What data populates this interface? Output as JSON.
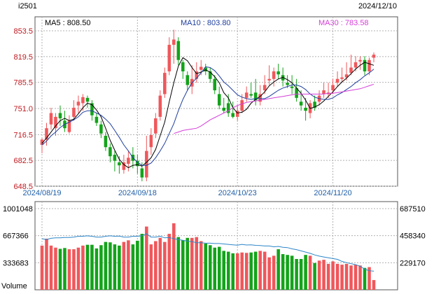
{
  "header": {
    "symbol": "i2501",
    "date": "2024/12/10"
  },
  "legend": [
    {
      "label": "MA5 : 808.50",
      "color": "#000000"
    },
    {
      "label": "MA10 : 803.80",
      "color": "#1f3f9f"
    },
    {
      "label": "MA30 : 783.58",
      "color": "#d43fd8"
    }
  ],
  "colors": {
    "up": "#f0575b",
    "down": "#13a31a",
    "vol_line": "#2c86c8",
    "grid": "#b0b0b0",
    "date_label": "#1f5fa8",
    "price_label": "#c0191f"
  },
  "chart_data": [
    {
      "type": "candlestick",
      "ylim": [
        648.5,
        853.5
      ],
      "y_ticks": [
        "853.5",
        "819.5",
        "785.5",
        "751.0",
        "716.5",
        "682.5",
        "648.5"
      ],
      "x_ticks": [
        "2024/08/19",
        "2024/09/18",
        "2024/10/23",
        "2024/11/20"
      ],
      "x_tick_index": [
        0,
        21,
        43,
        64
      ],
      "legend": [
        "MA5 : 808.50",
        "MA10 : 803.80",
        "MA30 : 783.58"
      ],
      "series": [
        {
          "name": "OHLC",
          "open": [
            703,
            710,
            730,
            725,
            745,
            735,
            720,
            740,
            755,
            758,
            765,
            758,
            740,
            730,
            715,
            700,
            690,
            680,
            670,
            678,
            690,
            682,
            672,
            660,
            700,
            718,
            740,
            770,
            800,
            835,
            840,
            812,
            795,
            780,
            790,
            802,
            805,
            800,
            790,
            770,
            752,
            758,
            745,
            740,
            748,
            765,
            770,
            772,
            760,
            775,
            788,
            790,
            800,
            795,
            785,
            780,
            778,
            760,
            752,
            745,
            760,
            760,
            770,
            770,
            775,
            785,
            790,
            792,
            798,
            805,
            813,
            815,
            800,
            818
          ],
          "high": [
            712,
            732,
            752,
            745,
            755,
            748,
            742,
            762,
            768,
            770,
            768,
            762,
            745,
            735,
            720,
            705,
            695,
            688,
            690,
            695,
            700,
            690,
            680,
            715,
            725,
            745,
            775,
            805,
            845,
            855,
            845,
            815,
            800,
            808,
            812,
            815,
            810,
            805,
            795,
            780,
            765,
            770,
            760,
            755,
            770,
            780,
            785,
            790,
            782,
            795,
            808,
            805,
            810,
            805,
            795,
            795,
            790,
            775,
            765,
            762,
            768,
            775,
            785,
            785,
            790,
            800,
            805,
            812,
            822,
            820,
            820,
            820,
            818,
            825
          ],
          "low": [
            692,
            702,
            723,
            715,
            728,
            720,
            718,
            735,
            745,
            748,
            752,
            735,
            728,
            712,
            695,
            680,
            668,
            665,
            665,
            668,
            672,
            665,
            655,
            655,
            690,
            712,
            735,
            765,
            795,
            810,
            808,
            790,
            775,
            770,
            785,
            795,
            795,
            785,
            770,
            750,
            745,
            740,
            738,
            735,
            745,
            760,
            765,
            755,
            755,
            770,
            782,
            780,
            790,
            780,
            778,
            770,
            760,
            748,
            735,
            738,
            748,
            755,
            765,
            765,
            770,
            780,
            785,
            788,
            795,
            800,
            802,
            795,
            795,
            812
          ],
          "close": [
            710,
            725,
            745,
            740,
            738,
            725,
            735,
            752,
            760,
            766,
            760,
            742,
            732,
            718,
            700,
            688,
            682,
            676,
            680,
            686,
            682,
            675,
            660,
            695,
            716,
            738,
            768,
            798,
            835,
            842,
            815,
            800,
            782,
            790,
            800,
            806,
            800,
            790,
            775,
            755,
            748,
            745,
            740,
            748,
            762,
            772,
            768,
            762,
            770,
            782,
            790,
            800,
            796,
            788,
            782,
            778,
            765,
            755,
            748,
            758,
            752,
            768,
            775,
            772,
            782,
            790,
            792,
            796,
            805,
            812,
            815,
            800,
            815,
            822
          ]
        },
        {
          "name": "MA5",
          "values": [
            705,
            712,
            720,
            728,
            735,
            738,
            735,
            737,
            744,
            752,
            758,
            756,
            749,
            740,
            725,
            709,
            696,
            684,
            677,
            673,
            676,
            677,
            675,
            680,
            686,
            697,
            715,
            733,
            760,
            785,
            807,
            818,
            814,
            805,
            797,
            799,
            802,
            799,
            793,
            785,
            772,
            765,
            752,
            745,
            746,
            750,
            758,
            763,
            767,
            773,
            781,
            786,
            790,
            792,
            789,
            785,
            778,
            771,
            762,
            751,
            753,
            756,
            761,
            767,
            773,
            780,
            786,
            791,
            797,
            803,
            808,
            812,
            810,
            808
          ]
        },
        {
          "name": "MA10",
          "values": [
            703,
            708,
            715,
            720,
            726,
            730,
            733,
            736,
            740,
            746,
            748,
            748,
            745,
            742,
            737,
            731,
            722,
            713,
            703,
            695,
            686,
            680,
            676,
            676,
            679,
            686,
            695,
            705,
            718,
            731,
            748,
            763,
            775,
            785,
            791,
            798,
            806,
            805,
            801,
            794,
            786,
            781,
            775,
            769,
            766,
            764,
            763,
            764,
            764,
            764,
            767,
            771,
            775,
            778,
            780,
            782,
            782,
            780,
            776,
            770,
            766,
            764,
            763,
            763,
            765,
            769,
            772,
            776,
            780,
            785,
            789,
            794,
            798,
            803
          ]
        },
        {
          "name": "MA30",
          "values": [
            null,
            null,
            null,
            null,
            null,
            null,
            null,
            null,
            null,
            null,
            null,
            null,
            null,
            null,
            null,
            null,
            null,
            null,
            null,
            null,
            null,
            null,
            null,
            null,
            null,
            null,
            null,
            null,
            null,
            718,
            720,
            722,
            723,
            724,
            725,
            728,
            732,
            736,
            739,
            742,
            745,
            748,
            752,
            755,
            757,
            759,
            760,
            761,
            762,
            763,
            764,
            765,
            766,
            767,
            768,
            769,
            770,
            770,
            770,
            770,
            770,
            770,
            770,
            771,
            771,
            772,
            773,
            774,
            775,
            776,
            777,
            779,
            781,
            783
          ]
        }
      ]
    },
    {
      "type": "bar",
      "ylim": [
        0,
        1001048
      ],
      "y_ticks_left": [
        "1001048",
        "667366",
        "333683"
      ],
      "y_ticks_right": [
        "687510",
        "458340",
        "229170"
      ],
      "ylabel": "Volume",
      "series": [
        {
          "name": "Volume",
          "values": [
            545000,
            630000,
            545000,
            520000,
            505000,
            515000,
            500000,
            500000,
            520000,
            545000,
            555000,
            555000,
            510000,
            550000,
            590000,
            585000,
            560000,
            545000,
            590000,
            610000,
            560000,
            605000,
            690000,
            780000,
            560000,
            600000,
            640000,
            590000,
            690000,
            820000,
            650000,
            610000,
            640000,
            640000,
            650000,
            600000,
            570000,
            550000,
            520000,
            530000,
            480000,
            470000,
            450000,
            450000,
            460000,
            455000,
            460000,
            470000,
            480000,
            470000,
            400000,
            420000,
            500000,
            440000,
            430000,
            420000,
            380000,
            380000,
            430000,
            420000,
            330000,
            360000,
            370000,
            320000,
            350000,
            320000,
            310000,
            320000,
            300000,
            310000,
            300000,
            270000,
            280000,
            120000
          ]
        },
        {
          "name": "Open Interest",
          "values": [
            630000,
            620000,
            635000,
            640000,
            640000,
            645000,
            645000,
            650000,
            660000,
            660000,
            665000,
            660000,
            650000,
            650000,
            660000,
            665000,
            660000,
            662000,
            650000,
            650000,
            660000,
            660000,
            665000,
            690000,
            650000,
            650000,
            660000,
            640000,
            645000,
            630000,
            620000,
            610000,
            600000,
            595000,
            580000,
            580000,
            575000,
            575000,
            570000,
            570000,
            565000,
            560000,
            555000,
            550000,
            560000,
            552000,
            555000,
            548000,
            545000,
            540000,
            540000,
            530000,
            535000,
            525000,
            520000,
            505000,
            495000,
            480000,
            465000,
            450000,
            430000,
            415000,
            405000,
            395000,
            385000,
            375000,
            350000,
            335000,
            322000,
            310000,
            290000,
            255000,
            235000,
            229170
          ]
        }
      ]
    }
  ]
}
